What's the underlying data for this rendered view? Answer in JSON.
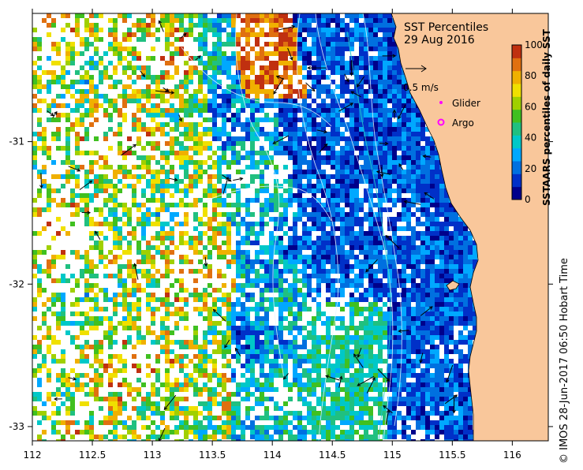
{
  "map": {
    "title": "SST Percentiles",
    "date": "29 Aug 2016",
    "x_ticks": [
      "112",
      "112.5",
      "113",
      "113.5",
      "114",
      "114.5",
      "115",
      "115.5",
      "116"
    ],
    "x_tick_values": [
      112,
      112.5,
      113,
      113.5,
      114,
      114.5,
      115,
      115.5,
      116
    ],
    "y_ticks": [
      "-31",
      "-32",
      "-33"
    ],
    "y_tick_values": [
      -31,
      -32,
      -33
    ],
    "lon_range": [
      112,
      116.3
    ],
    "lat_range": [
      -33.1,
      -30.1
    ]
  },
  "legend": {
    "vector_scale_label": "0.5 m/s",
    "glider_label": "Glider",
    "argo_label": "Argo",
    "glider_color": "#ff00ff",
    "argo_color": "#ff00ff"
  },
  "colorbar": {
    "label": "SSTAARS percentiles of daily SST",
    "tick_labels": [
      "0",
      "20",
      "40",
      "60",
      "80",
      "100"
    ],
    "tick_values": [
      0,
      20,
      40,
      60,
      80,
      100
    ],
    "colors": [
      "#00008b",
      "#0030c8",
      "#0070e0",
      "#00a8ff",
      "#00c8c8",
      "#20c080",
      "#40c020",
      "#a0d000",
      "#f0e000",
      "#f0b000",
      "#e07010",
      "#c03010"
    ]
  },
  "colors": {
    "land": "#f9c79b",
    "background": "#ffffff"
  },
  "credit": "© IMOS 28-Jun-2017 06:50 Hobart Time"
}
